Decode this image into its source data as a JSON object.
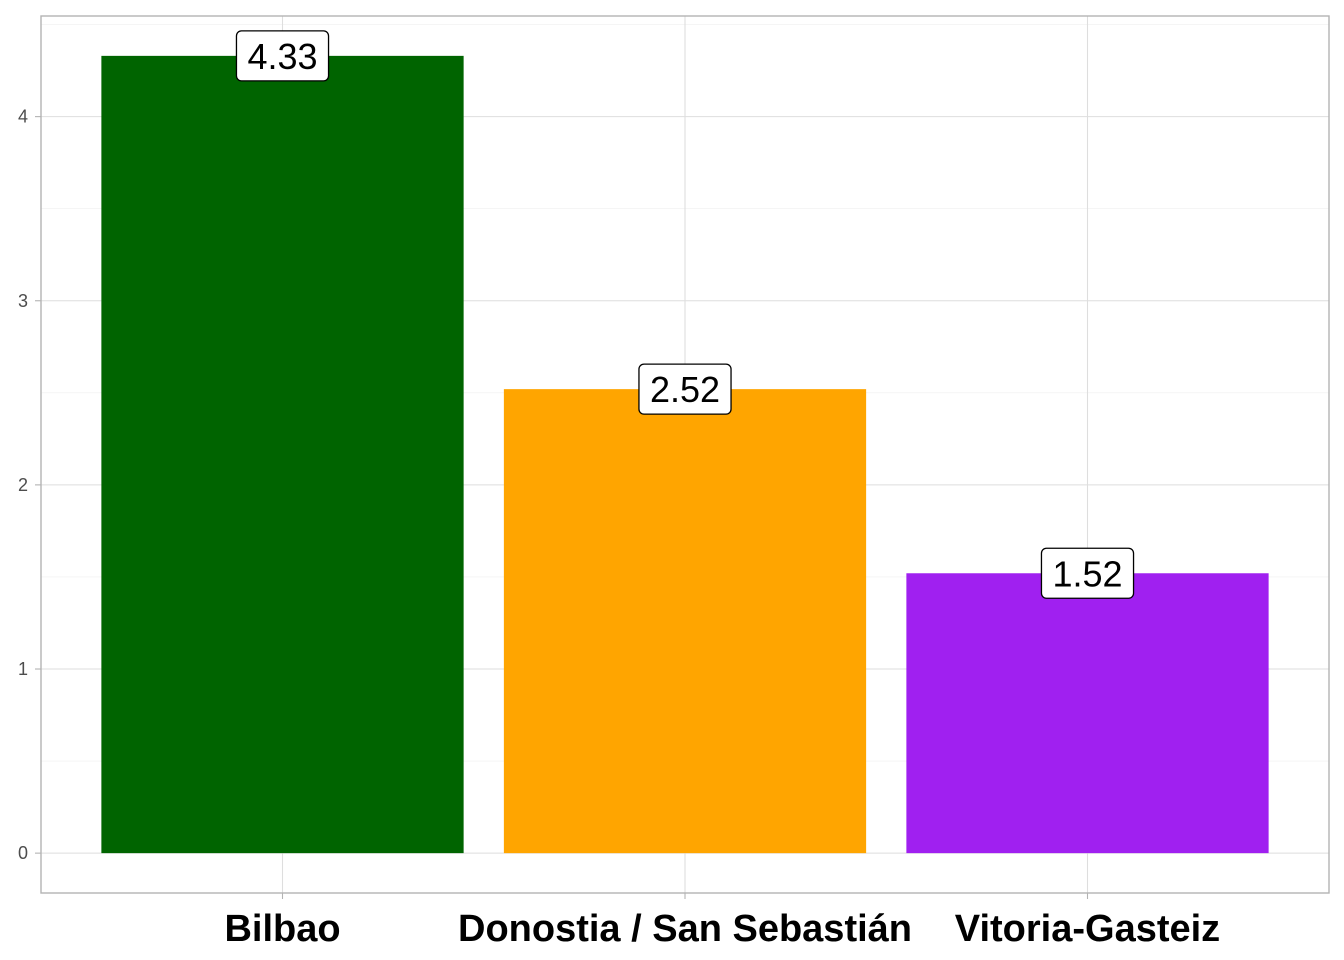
{
  "chart_data": {
    "type": "bar",
    "title": "",
    "xlabel": "",
    "ylabel": "",
    "categories": [
      "Bilbao",
      "Donostia / San Sebastián",
      "Vitoria-Gasteiz"
    ],
    "values": [
      4.33,
      2.52,
      1.52
    ],
    "value_labels": [
      "4.33",
      "2.52",
      "1.52"
    ],
    "colors": [
      "#006400",
      "#ffa500",
      "#a020f0"
    ],
    "ylim": [
      -0.2165,
      4.5465
    ],
    "yticks": [
      0,
      1,
      2,
      3,
      4
    ],
    "ytick_labels": [
      "0",
      "1",
      "2",
      "3",
      "4"
    ],
    "grid": true,
    "legend": "none"
  }
}
